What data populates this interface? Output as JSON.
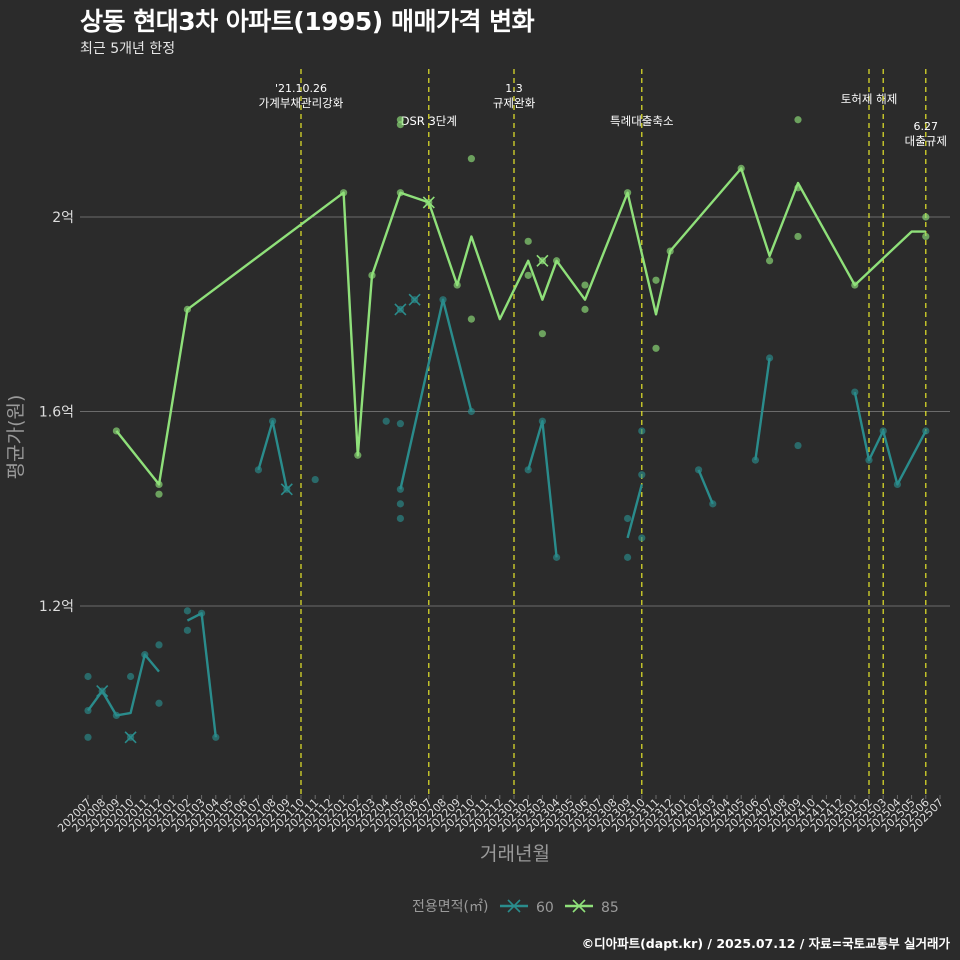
{
  "title": "상동 현대3차 아파트(1995) 매매가격 변화",
  "subtitle": "최근 5개년 한정",
  "caption": "©디아파트(dapt.kr) / 2025.07.12 / 자료=국토교통부 실거래가",
  "colors": {
    "bg": "#2b2b2b",
    "grid": "#6b6b6b",
    "s60": "#2a8c8c",
    "s85": "#8fe07a",
    "event": "#e6e62a",
    "text": "#ffffff",
    "axis": "#9a9a9a"
  },
  "chart_data": {
    "type": "line",
    "xlabel": "거래년월",
    "ylabel": "평균가(원)",
    "x": [
      "202007",
      "202008",
      "202009",
      "202010",
      "202011",
      "202012",
      "202101",
      "202102",
      "202103",
      "202104",
      "202105",
      "202106",
      "202107",
      "202108",
      "202109",
      "202110",
      "202111",
      "202112",
      "202201",
      "202202",
      "202203",
      "202204",
      "202205",
      "202206",
      "202207",
      "202208",
      "202209",
      "202210",
      "202211",
      "202212",
      "202301",
      "202302",
      "202303",
      "202304",
      "202305",
      "202306",
      "202307",
      "202308",
      "202309",
      "202310",
      "202311",
      "202312",
      "202401",
      "202402",
      "202403",
      "202404",
      "202405",
      "202406",
      "202407",
      "202408",
      "202409",
      "202410",
      "202411",
      "202412",
      "202501",
      "202502",
      "202503",
      "202504",
      "202505",
      "202506",
      "202507"
    ],
    "yticks": [
      {
        "value": 1.2,
        "label": "1.2억"
      },
      {
        "value": 1.6,
        "label": "1.6억"
      },
      {
        "value": 2.0,
        "label": "2억"
      }
    ],
    "ylim": [
      0.82,
      2.31
    ],
    "grid": true,
    "legend": {
      "title": "전용면적(㎡)",
      "position": "bottom",
      "entries": [
        "60",
        "85"
      ]
    },
    "series": [
      {
        "name": "60",
        "segments": [
          [
            [
              "202007",
              0.985
            ],
            [
              "202008",
              1.025
            ],
            [
              "202009",
              0.975
            ],
            [
              "202010",
              0.98
            ],
            [
              "202011",
              1.1
            ],
            [
              "202012",
              1.065
            ]
          ],
          [
            [
              "202102",
              1.17
            ],
            [
              "202103",
              1.185
            ],
            [
              "202104",
              0.93
            ]
          ],
          [
            [
              "202107",
              1.48
            ],
            [
              "202108",
              1.58
            ],
            [
              "202109",
              1.44
            ]
          ],
          [
            [
              "202205",
              1.44
            ],
            [
              "202206",
              1.57
            ],
            [
              "202208",
              1.83
            ],
            [
              "202210",
              1.6
            ]
          ],
          [
            [
              "202302",
              1.48
            ],
            [
              "202303",
              1.58
            ],
            [
              "202304",
              1.3
            ]
          ],
          [
            [
              "202309",
              1.34
            ],
            [
              "202310",
              1.45
            ]
          ],
          [
            [
              "202402",
              1.48
            ],
            [
              "202403",
              1.41
            ]
          ],
          [
            [
              "202406",
              1.5
            ],
            [
              "202407",
              1.71
            ]
          ],
          [
            [
              "202501",
              1.64
            ],
            [
              "202502",
              1.5
            ],
            [
              "202503",
              1.56
            ],
            [
              "202504",
              1.45
            ],
            [
              "202506",
              1.56
            ]
          ]
        ],
        "points": [
          [
            "202007",
            0.93
          ],
          [
            "202007",
            0.985
          ],
          [
            "202007",
            1.055
          ],
          [
            "202008",
            1.025
          ],
          [
            "202009",
            0.975
          ],
          [
            "202010",
            0.93
          ],
          [
            "202010",
            1.055
          ],
          [
            "202011",
            1.1
          ],
          [
            "202012",
            1.0
          ],
          [
            "202012",
            1.12
          ],
          [
            "202102",
            1.15
          ],
          [
            "202102",
            1.19
          ],
          [
            "202103",
            1.185
          ],
          [
            "202104",
            0.93
          ],
          [
            "202107",
            1.48
          ],
          [
            "202108",
            1.58
          ],
          [
            "202109",
            1.44
          ],
          [
            "202111",
            1.46
          ],
          [
            "202204",
            1.58
          ],
          [
            "202205",
            1.38
          ],
          [
            "202205",
            1.41
          ],
          [
            "202205",
            1.44
          ],
          [
            "202205",
            1.575
          ],
          [
            "202205",
            1.81
          ],
          [
            "202206",
            1.83
          ],
          [
            "202208",
            1.83
          ],
          [
            "202210",
            1.6
          ],
          [
            "202302",
            1.48
          ],
          [
            "202303",
            1.58
          ],
          [
            "202304",
            1.3
          ],
          [
            "202309",
            1.3
          ],
          [
            "202309",
            1.38
          ],
          [
            "202310",
            1.34
          ],
          [
            "202310",
            1.47
          ],
          [
            "202310",
            1.56
          ],
          [
            "202402",
            1.48
          ],
          [
            "202403",
            1.41
          ],
          [
            "202406",
            1.5
          ],
          [
            "202407",
            1.71
          ],
          [
            "202409",
            1.53
          ],
          [
            "202501",
            1.64
          ],
          [
            "202502",
            1.5
          ],
          [
            "202503",
            1.56
          ],
          [
            "202504",
            1.45
          ],
          [
            "202506",
            1.56
          ]
        ],
        "crosses": [
          [
            "202008",
            1.025
          ],
          [
            "202010",
            0.93
          ],
          [
            "202109",
            1.44
          ],
          [
            "202205",
            1.81
          ],
          [
            "202206",
            1.83
          ]
        ]
      },
      {
        "name": "85",
        "segments": [
          [
            [
              "202009",
              1.56
            ],
            [
              "202012",
              1.45
            ],
            [
              "202102",
              1.81
            ],
            [
              "202201",
              2.05
            ],
            [
              "202202",
              1.51
            ],
            [
              "202203",
              1.88
            ],
            [
              "202205",
              2.05
            ],
            [
              "202207",
              2.03
            ],
            [
              "202209",
              1.86
            ],
            [
              "202210",
              1.96
            ],
            [
              "202212",
              1.79
            ],
            [
              "202302",
              1.91
            ],
            [
              "202303",
              1.83
            ],
            [
              "202304",
              1.91
            ],
            [
              "202306",
              1.83
            ],
            [
              "202309",
              2.05
            ],
            [
              "202311",
              1.8
            ],
            [
              "202312",
              1.93
            ],
            [
              "202405",
              2.1
            ],
            [
              "202407",
              1.92
            ],
            [
              "202409",
              2.07
            ],
            [
              "202501",
              1.86
            ],
            [
              "202505",
              1.97
            ],
            [
              "202506",
              1.97
            ]
          ]
        ],
        "points": [
          [
            "202009",
            1.56
          ],
          [
            "202012",
            1.43
          ],
          [
            "202012",
            1.45
          ],
          [
            "202102",
            1.81
          ],
          [
            "202201",
            2.05
          ],
          [
            "202202",
            1.51
          ],
          [
            "202203",
            1.88
          ],
          [
            "202205",
            2.19
          ],
          [
            "202205",
            2.2
          ],
          [
            "202205",
            2.05
          ],
          [
            "202207",
            2.03
          ],
          [
            "202209",
            1.86
          ],
          [
            "202210",
            1.79
          ],
          [
            "202210",
            2.12
          ],
          [
            "202302",
            1.88
          ],
          [
            "202302",
            1.95
          ],
          [
            "202303",
            1.76
          ],
          [
            "202303",
            1.91
          ],
          [
            "202304",
            1.91
          ],
          [
            "202306",
            1.81
          ],
          [
            "202306",
            1.86
          ],
          [
            "202309",
            2.05
          ],
          [
            "202311",
            1.73
          ],
          [
            "202311",
            1.87
          ],
          [
            "202312",
            1.93
          ],
          [
            "202405",
            2.1
          ],
          [
            "202407",
            1.91
          ],
          [
            "202409",
            1.96
          ],
          [
            "202409",
            2.06
          ],
          [
            "202409",
            2.2
          ],
          [
            "202501",
            1.86
          ],
          [
            "202506",
            1.96
          ],
          [
            "202506",
            2.0
          ]
        ],
        "crosses": [
          [
            "202207",
            2.03
          ],
          [
            "202303",
            1.91
          ]
        ]
      }
    ],
    "events": [
      {
        "x": 202110.0,
        "label1": "'21.10.26",
        "label2": "가계부채관리강화",
        "level": 0
      },
      {
        "x": 202207.0,
        "label1": "",
        "label2": "DSR 3단계",
        "level": 1
      },
      {
        "x": 202301.0,
        "label1": "1.3",
        "label2": "규제완화",
        "level": 0
      },
      {
        "x": 202310.0,
        "label1": "",
        "label2": "특례대출축소",
        "level": 1
      },
      {
        "x": 202502.0,
        "label1": "",
        "label2": "토허제 해제",
        "level": 0
      },
      {
        "x": 202503.0,
        "label1": "",
        "label2": "",
        "level": 0
      },
      {
        "x": 202506.0,
        "label1": "6.27",
        "label2": "대출규제",
        "level": 2
      }
    ]
  }
}
